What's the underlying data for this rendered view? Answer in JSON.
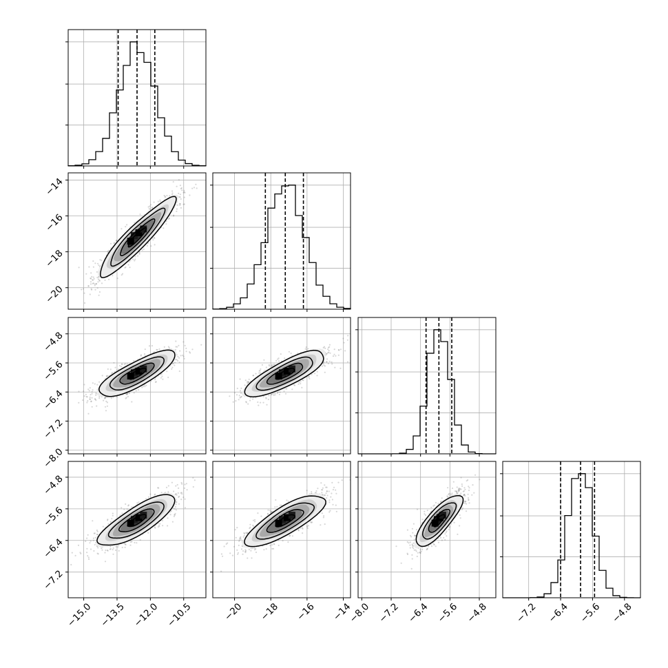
{
  "chart_data": {
    "type": "corner",
    "title": "",
    "grid": true,
    "parameters": [
      {
        "mean": -12.6,
        "sd": 0.82,
        "range": [
          -15.7,
          -9.5
        ],
        "q": [
          -13.45,
          -12.6,
          -11.8
        ],
        "ticks": [
          -15.0,
          -13.5,
          -12.0,
          -10.5
        ],
        "tick_labels": [
          "−15.0",
          "−13.5",
          "−12.0",
          "−10.5"
        ]
      },
      {
        "mean": -17.2,
        "sd": 1.05,
        "range": [
          -21.2,
          -13.6
        ],
        "q": [
          -18.3,
          -17.2,
          -16.2
        ],
        "ticks": [
          -20,
          -18,
          -16,
          -14
        ],
        "tick_labels": [
          "−20",
          "−18",
          "−16",
          "−14"
        ]
      },
      {
        "mean": -5.9,
        "sd": 0.3,
        "range": [
          -8.1,
          -4.35
        ],
        "q": [
          -6.25,
          -5.9,
          -5.55
        ],
        "ticks": [
          -8.0,
          -7.2,
          -6.4,
          -5.6,
          -4.8
        ],
        "tick_labels": [
          "−8.0",
          "−7.2",
          "−6.4",
          "−5.6",
          "−4.8"
        ]
      },
      {
        "mean": -5.9,
        "sd": 0.31,
        "range": [
          -7.85,
          -4.4
        ],
        "q": [
          -6.4,
          -5.9,
          -5.55
        ],
        "ticks": [
          -7.2,
          -6.4,
          -5.6,
          -4.8
        ],
        "tick_labels": [
          "−7.2",
          "−6.4",
          "−5.6",
          "−4.8"
        ]
      }
    ],
    "correlations": [
      [
        1,
        0.92,
        0.8,
        0.8
      ],
      [
        0.92,
        1,
        0.8,
        0.8
      ],
      [
        0.8,
        0.8,
        1,
        0.8
      ],
      [
        0.8,
        0.8,
        0.8,
        1
      ]
    ],
    "bins": 20,
    "quantiles": [
      0.16,
      0.5,
      0.84
    ],
    "contour_levels": [
      0.5,
      1.0,
      1.5,
      2.0
    ]
  }
}
